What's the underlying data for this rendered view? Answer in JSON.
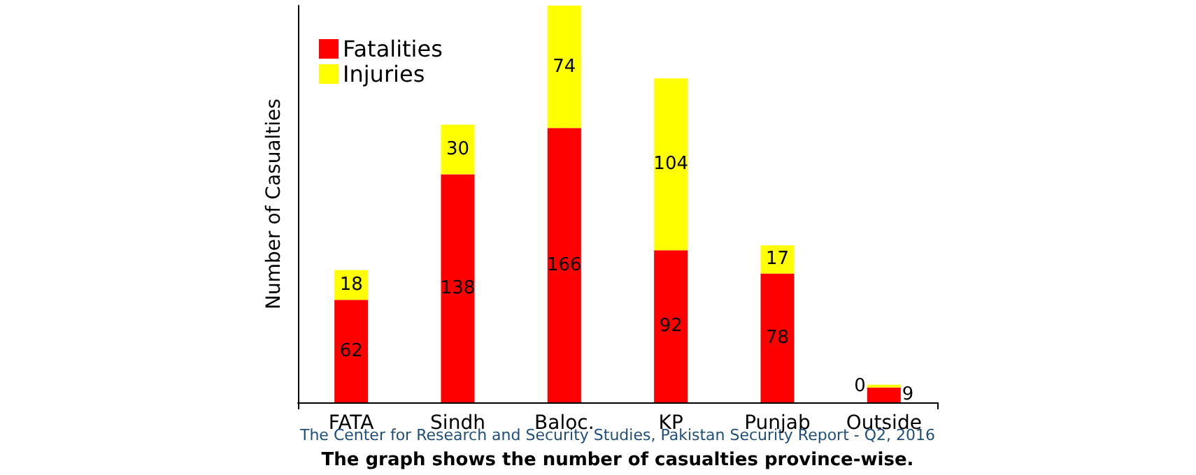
{
  "chart_data": {
    "type": "bar",
    "ylabel": "Number of Casualties",
    "categories": [
      "FATA",
      "Sindh",
      "Baloc.",
      "KP",
      "Punjab",
      "Outside"
    ],
    "stacked": true,
    "relative": false,
    "data_labels": true,
    "legend": "top left",
    "grid": false,
    "series": [
      {
        "name": "Fatalities",
        "color": "#ff0000",
        "values": [
          62,
          138,
          166,
          92,
          78,
          9
        ]
      },
      {
        "name": "Injuries",
        "color": "#ffff00",
        "values": [
          18,
          30,
          74,
          104,
          17,
          0
        ]
      }
    ],
    "annotations": [
      "The Center for Research and Security Studies, Pakistan Security Report - Q2, 2016",
      "The graph shows the number of casualties province-wise."
    ]
  }
}
